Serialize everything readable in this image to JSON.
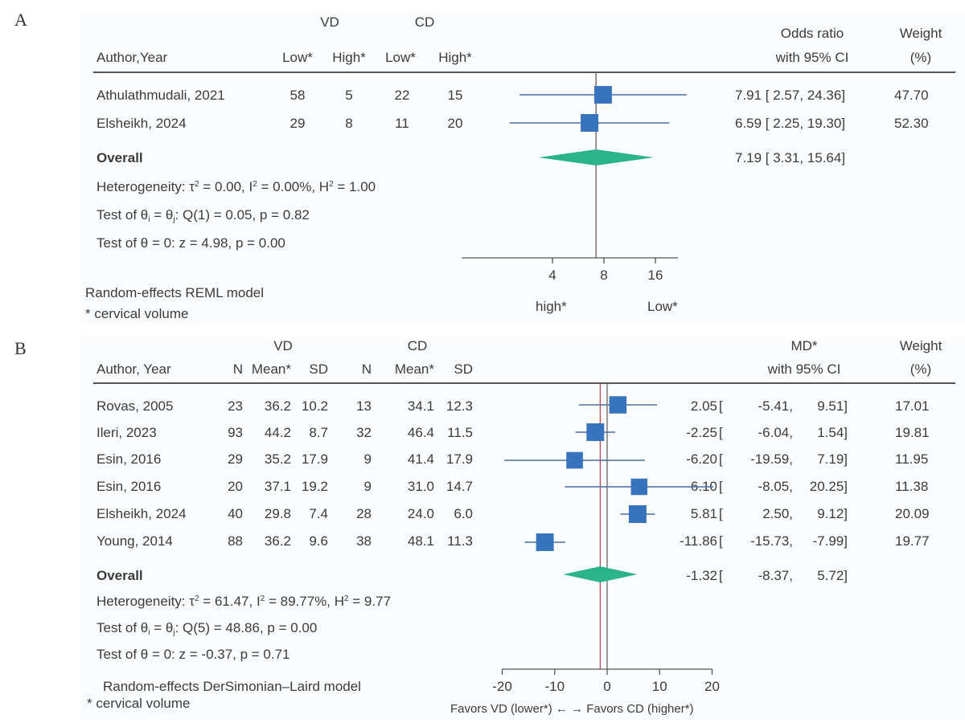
{
  "panel_a": {
    "letter": "A",
    "header": {
      "group1": "VD",
      "group2": "CD",
      "author_col": "Author,Year",
      "sub_cols": [
        "Low*",
        "High*",
        "Low*",
        "High*"
      ],
      "effect_col_line1": "Odds ratio",
      "effect_col_line2": "with 95% CI",
      "weight_col_line1": "Weight",
      "weight_col_line2": "(%)"
    },
    "rows": [
      {
        "study": "Athulathmudali, 2021",
        "cells": [
          "58",
          "5",
          "22",
          "15"
        ],
        "ci_text": "7.91 [ 2.57,  24.36]",
        "weight": "47.70"
      },
      {
        "study": "Elsheikh, 2024",
        "cells": [
          "29",
          "8",
          "11",
          "20"
        ],
        "ci_text": "6.59 [ 2.25,  19.30]",
        "weight": "52.30"
      }
    ],
    "overall": {
      "label": "Overall",
      "ci_text": "7.19 [ 3.31,  15.64]"
    },
    "stats": {
      "heterogeneity": {
        "prefix": "Heterogeneity: τ",
        "tau2": " = 0.00, I",
        "i2": " = 0.00%, H",
        "h2": " = 1.00"
      },
      "test_ij": {
        "prefix": "Test of θ",
        "i": "i",
        "mid": " = θ",
        "j": "j",
        "suffix": ": Q(1) = 0.05, p = 0.82"
      },
      "test_zero": "Test of θ = 0: z = 4.98, p = 0.00"
    },
    "footer_model": "Random-effects REML model",
    "footer_note": "* cervical volume",
    "axis_left_label": "high*",
    "axis_right_label": "Low*"
  },
  "panel_b": {
    "letter": "B",
    "header": {
      "group1": "VD",
      "group2": "CD",
      "author_col": "Author, Year",
      "sub_cols": [
        "N",
        "Mean*",
        "SD",
        "N",
        "Mean*",
        "SD"
      ],
      "effect_col_line1": "MD*",
      "effect_col_line2": "with 95% CI",
      "weight_col_line1": "Weight",
      "weight_col_line2": "(%)"
    },
    "rows": [
      {
        "study": "Rovas, 2005",
        "cells": [
          "23",
          "36.2",
          "10.2",
          "13",
          "34.1",
          "12.3"
        ],
        "md": "2.05",
        "lo": "-5.41,",
        "hi": "9.51]",
        "weight": "17.01"
      },
      {
        "study": "Ileri, 2023",
        "cells": [
          "93",
          "44.2",
          "8.7",
          "32",
          "46.4",
          "11.5"
        ],
        "md": "-2.25",
        "lo": "-6.04,",
        "hi": "1.54]",
        "weight": "19.81"
      },
      {
        "study": "Esin, 2016",
        "cells": [
          "29",
          "35.2",
          "17.9",
          "9",
          "41.4",
          "17.9"
        ],
        "md": "-6.20",
        "lo": "-19.59,",
        "hi": "7.19]",
        "weight": "11.95"
      },
      {
        "study": "Esin, 2016",
        "cells": [
          "20",
          "37.1",
          "19.2",
          "9",
          "31.0",
          "14.7"
        ],
        "md": "6.10",
        "lo": "-8.05,",
        "hi": "20.25]",
        "weight": "11.38"
      },
      {
        "study": "Elsheikh, 2024",
        "cells": [
          "40",
          "29.8",
          "7.4",
          "28",
          "24.0",
          "6.0"
        ],
        "md": "5.81",
        "lo": "2.50,",
        "hi": "9.12]",
        "weight": "20.09"
      },
      {
        "study": "Young, 2014",
        "cells": [
          "88",
          "36.2",
          "9.6",
          "38",
          "48.1",
          "11.3"
        ],
        "md": "-11.86",
        "lo": "-15.73,",
        "hi": "-7.99]",
        "weight": "19.77"
      }
    ],
    "overall": {
      "label": "Overall",
      "md": "-1.32",
      "lo": "-8.37,",
      "hi": "5.72]"
    },
    "stats": {
      "heterogeneity": {
        "prefix": "Heterogeneity: τ",
        "tau2": " = 61.47, I",
        "i2": " = 89.77%, H",
        "h2": " = 9.77"
      },
      "test_ij": {
        "prefix": "Test of θ",
        "i": "i",
        "mid": " = θ",
        "j": "j",
        "suffix": ": Q(5) = 48.86, p = 0.00"
      },
      "test_zero": "Test of θ = 0: z = -0.37, p = 0.71"
    },
    "footer_model": "Random-effects DerSimonian–Laird model",
    "footer_note": "* cervical volume",
    "axis_caption": "Favors VD (lower*) ← → Favors CD (higher*)"
  },
  "colors": {
    "square": "#3873bd",
    "ci_line": "#4a6fa5",
    "diamond": "#2bb48a",
    "overall_line_b": "#b04a4a",
    "null_line": "#666666"
  },
  "chart_data": [
    {
      "type": "forest",
      "title": "A",
      "measure": "Odds ratio with 95% CI",
      "scale": "log",
      "xticks": [
        4,
        8,
        16
      ],
      "xlim": [
        1.18,
        21.7
      ],
      "xlabel_left": "high*",
      "xlabel_right": "Low*",
      "studies": [
        {
          "name": "Athulathmudali, 2021",
          "estimate": 7.91,
          "lower": 2.57,
          "upper": 24.36,
          "weight": 47.7
        },
        {
          "name": "Elsheikh, 2024",
          "estimate": 6.59,
          "lower": 2.25,
          "upper": 19.3,
          "weight": 52.3
        }
      ],
      "overall": {
        "estimate": 7.19,
        "lower": 3.31,
        "upper": 15.64
      },
      "reference_line": 7.19
    },
    {
      "type": "forest",
      "title": "B",
      "measure": "MD* with 95% CI",
      "scale": "linear",
      "xticks": [
        -20,
        -10,
        0,
        10,
        20
      ],
      "xlim": [
        -20,
        20
      ],
      "xlabel": "Favors VD (lower*) ← → Favors CD (higher*)",
      "studies": [
        {
          "name": "Rovas, 2005",
          "estimate": 2.05,
          "lower": -5.41,
          "upper": 9.51,
          "weight": 17.01
        },
        {
          "name": "Ileri, 2023",
          "estimate": -2.25,
          "lower": -6.04,
          "upper": 1.54,
          "weight": 19.81
        },
        {
          "name": "Esin, 2016",
          "estimate": -6.2,
          "lower": -19.59,
          "upper": 7.19,
          "weight": 11.95
        },
        {
          "name": "Esin, 2016",
          "estimate": 6.1,
          "lower": -8.05,
          "upper": 20.25,
          "weight": 11.38
        },
        {
          "name": "Elsheikh, 2024",
          "estimate": 5.81,
          "lower": 2.5,
          "upper": 9.12,
          "weight": 20.09
        },
        {
          "name": "Young, 2014",
          "estimate": -11.86,
          "lower": -15.73,
          "upper": -7.99,
          "weight": 19.77
        }
      ],
      "overall": {
        "estimate": -1.32,
        "lower": -8.37,
        "upper": 5.72
      },
      "null_line": 0,
      "reference_line": -1.32
    }
  ]
}
